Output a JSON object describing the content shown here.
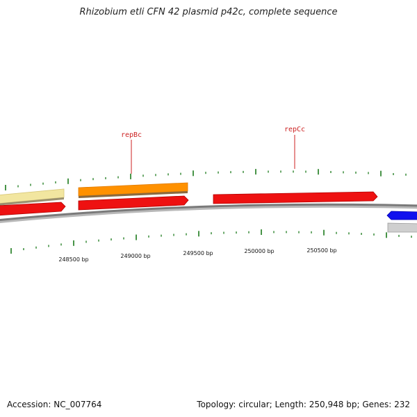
{
  "title": "Rhizobium etli CFN 42 plasmid p42c, complete sequence",
  "accession_text": "Accession: NC_007764",
  "summary_text": "Topology: circular; Length: 250,948 bp; Genes: 232",
  "gene_labels": [
    "repBc",
    "repCc"
  ],
  "scale_labels": [
    "248500 bp",
    "249000 bp",
    "249500 bp",
    "250000 bp",
    "250500 bp"
  ],
  "colors": {
    "backbone": "#7a7a7a",
    "tick": "#1a7a1a",
    "label_line": "#cc2222",
    "red_feature": "#ee1111",
    "orange_feature": "#ff9100",
    "yellow_feature": "#f2e6a0",
    "blue_feature": "#1111ee",
    "gray_feature": "#cfcfcf"
  }
}
